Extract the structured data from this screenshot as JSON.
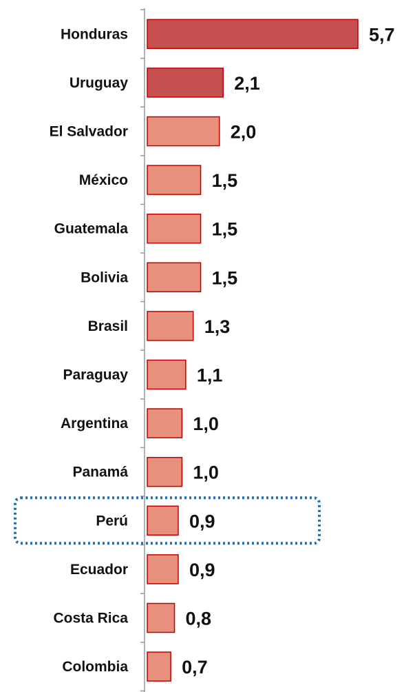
{
  "chart_data": {
    "type": "bar",
    "orientation": "horizontal",
    "categories": [
      "Honduras",
      "Uruguay",
      "El Salvador",
      "México",
      "Guatemala",
      "Bolivia",
      "Brasil",
      "Paraguay",
      "Argentina",
      "Panamá",
      "Perú",
      "Ecuador",
      "Costa Rica",
      "Colombia"
    ],
    "values": [
      5.7,
      2.1,
      2.0,
      1.5,
      1.5,
      1.5,
      1.3,
      1.1,
      1.0,
      1.0,
      0.9,
      0.9,
      0.8,
      0.7
    ],
    "value_labels": [
      "5,7",
      "2,1",
      "2,0",
      "1,5",
      "1,5",
      "1,5",
      "1,3",
      "1,1",
      "1,0",
      "1,0",
      "0,9",
      "0,9",
      "0,8",
      "0,7"
    ],
    "xlim": [
      0,
      5.7
    ],
    "grid": false,
    "highlighted_category": "Perú",
    "colors": {
      "bar": "#e8907e",
      "bar_dark": "#c5504f",
      "bar_stroke": "#c00000",
      "axis": "#999999",
      "highlight": "#1f6fb5"
    },
    "dark_categories": [
      "Honduras",
      "Uruguay"
    ]
  }
}
